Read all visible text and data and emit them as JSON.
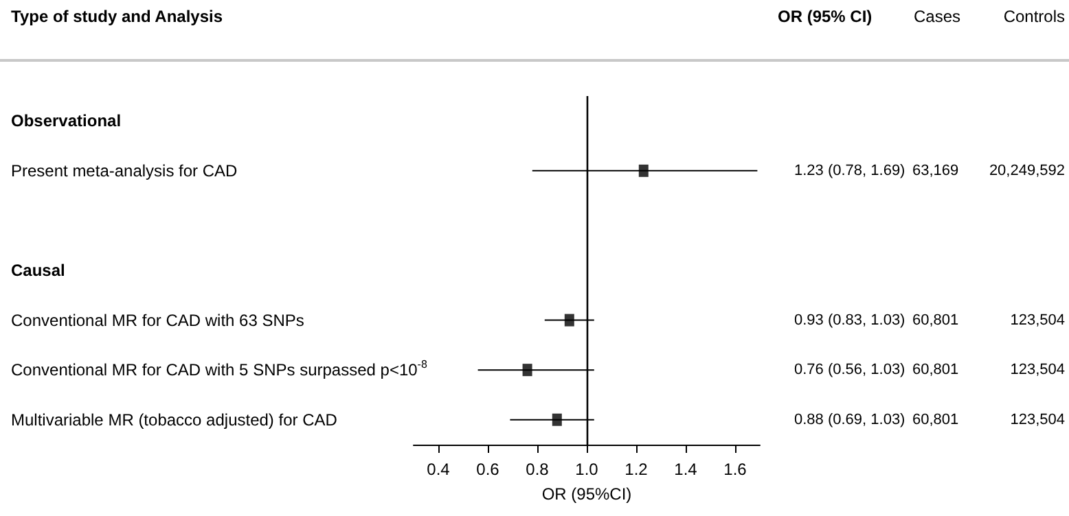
{
  "chart_data": {
    "type": "scatter",
    "xlabel": "OR (95%CI)",
    "categories": [
      "Observational",
      "Present meta-analysis for CAD",
      null,
      "Causal",
      "Conventional MR for CAD with 63 SNPs",
      "Conventional MR for CAD with 5 SNPs surpassed p<10$^{-8}$",
      "Multivariable MR (tobacco adjusted) for CAD"
    ],
    "values": [
      null,
      1.23,
      null,
      null,
      0.93,
      0.76,
      0.88
    ],
    "errors": [
      null,
      [
        0.78,
        1.69
      ],
      null,
      null,
      [
        0.83,
        1.03
      ],
      [
        0.56,
        1.03
      ],
      [
        0.69,
        1.03
      ]
    ],
    "value_labels": [
      null,
      "1.23 (0.78, 1.69)",
      null,
      null,
      "0.93 (0.83, 1.03)",
      "0.76 (0.56, 1.03)",
      "0.88 (0.69, 1.03)"
    ],
    "color": "#000000",
    "marker": "square",
    "orientation": "horizontal",
    "xlim": [
      0.3,
      1.7
    ],
    "xticks": [
      0.4,
      0.6,
      0.8,
      {
        "value": 1,
        "label": "1.0"
      },
      1.2,
      1.4,
      1.6
    ],
    "ref_lines": [
      {
        "axis": "x",
        "value": 1,
        "color": "#000000"
      }
    ],
    "annotations": [
      "Type of study and Analysis",
      "OR (95% CI)",
      "Cases",
      "Controls",
      "63,169",
      "20,249,592",
      "60,801",
      "123,504",
      "60,801",
      "123,504",
      "60,801",
      "123,504"
    ]
  }
}
